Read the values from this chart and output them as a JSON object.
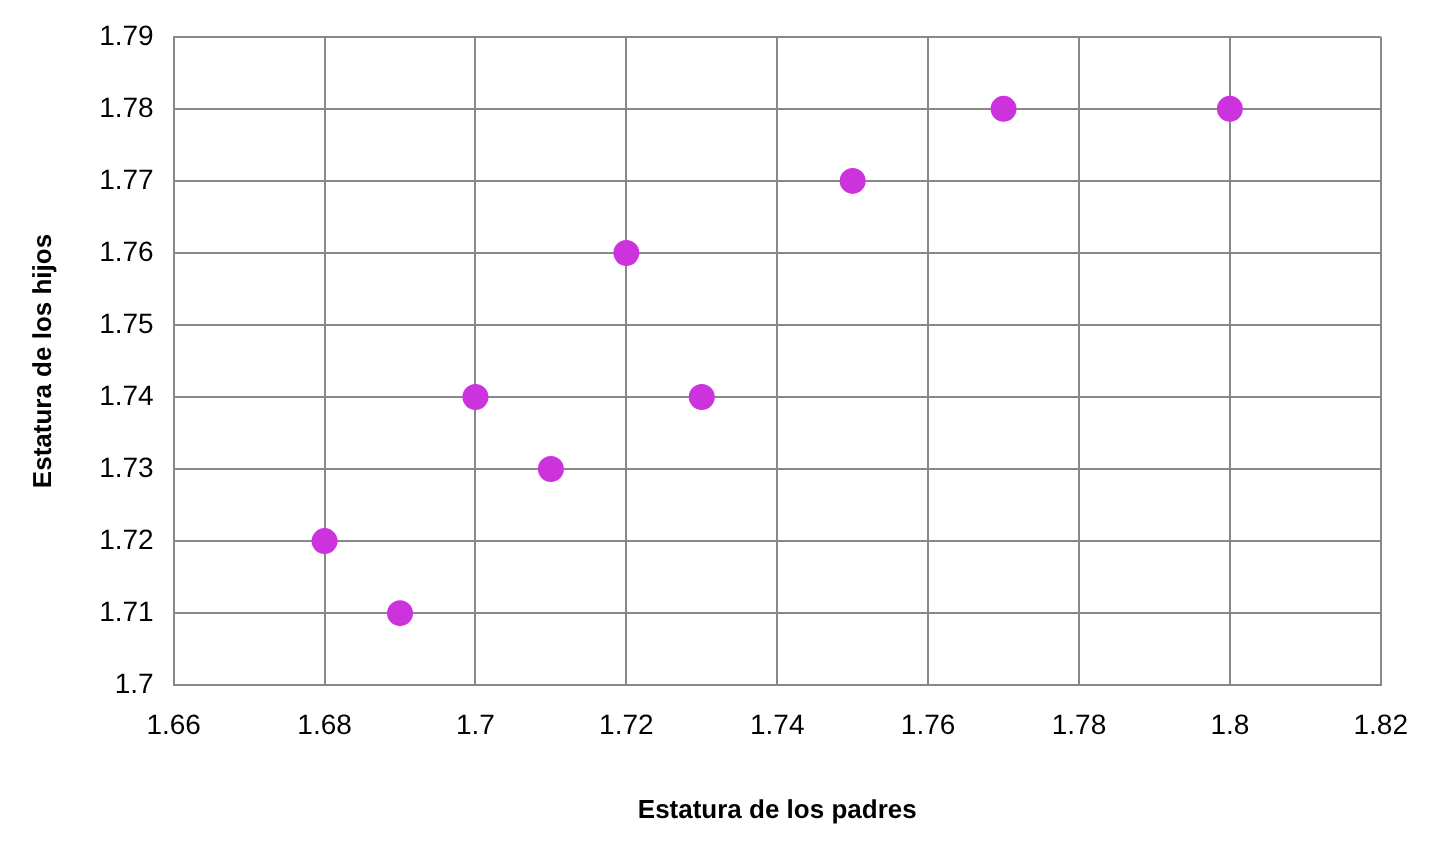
{
  "chart_data": {
    "type": "scatter",
    "xlabel": "Estatura de los padres",
    "ylabel": "Estatura de los hijos",
    "x": [
      1.68,
      1.69,
      1.7,
      1.71,
      1.72,
      1.73,
      1.75,
      1.77,
      1.8
    ],
    "series": [
      {
        "color": "#cc33dd",
        "values": [
          1.72,
          1.71,
          1.74,
          1.73,
          1.76,
          1.74,
          1.77,
          1.78,
          1.78
        ]
      }
    ],
    "xlim": [
      1.66,
      1.82
    ],
    "xticks": [
      1.66,
      1.68,
      1.7,
      1.72,
      1.74,
      1.76,
      1.78,
      1.8,
      1.82
    ],
    "ylim": [
      1.7,
      1.79
    ],
    "yticks": [
      1.7,
      1.71,
      1.72,
      1.73,
      1.74,
      1.75,
      1.76,
      1.77,
      1.78,
      1.79
    ],
    "grid": true,
    "legend": false,
    "marker": "circle"
  }
}
